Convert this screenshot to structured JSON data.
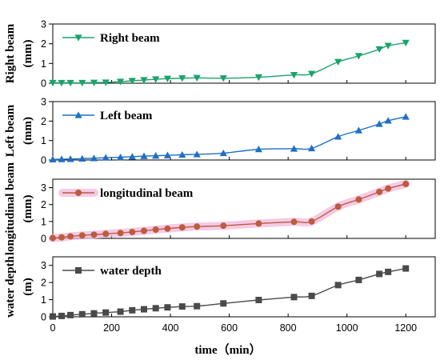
{
  "chart_data": {
    "type": "line",
    "x_axis": {
      "label": "time（min）",
      "range": [
        0,
        1300
      ],
      "ticks": [
        0,
        200,
        400,
        600,
        800,
        1000,
        1200
      ]
    },
    "panels": [
      {
        "ylabel_line1": "Right beam",
        "ylabel_line2": "(mm)",
        "ylim": [
          0,
          3
        ],
        "yticks": [
          0,
          1,
          2,
          3
        ],
        "series": [
          {
            "name": "Right beam",
            "color": "#1aa36b",
            "marker": "triangle-down",
            "band": false,
            "x": [
              0,
              30,
              60,
              100,
              140,
              180,
              230,
              270,
              310,
              350,
              390,
              440,
              490,
              580,
              700,
              820,
              880,
              970,
              1040,
              1110,
              1140,
              1200
            ],
            "y": [
              0.02,
              0.02,
              0.02,
              0.02,
              0.03,
              0.04,
              0.08,
              0.12,
              0.16,
              0.2,
              0.23,
              0.25,
              0.27,
              0.25,
              0.3,
              0.42,
              0.48,
              1.08,
              1.38,
              1.72,
              1.9,
              2.05
            ]
          }
        ]
      },
      {
        "ylabel_line1": "Left beam",
        "ylabel_line2": "(mm)",
        "ylim": [
          0,
          3
        ],
        "yticks": [
          0,
          1,
          2,
          3
        ],
        "series": [
          {
            "name": "Left beam",
            "color": "#1f6fc5",
            "marker": "triangle-up",
            "band": false,
            "x": [
              0,
              30,
              60,
              100,
              140,
              180,
              230,
              270,
              310,
              350,
              390,
              440,
              490,
              580,
              700,
              820,
              880,
              970,
              1040,
              1110,
              1140,
              1200
            ],
            "y": [
              0.03,
              0.04,
              0.05,
              0.07,
              0.09,
              0.12,
              0.14,
              0.17,
              0.2,
              0.22,
              0.24,
              0.27,
              0.29,
              0.35,
              0.55,
              0.58,
              0.6,
              1.2,
              1.52,
              1.85,
              2.02,
              2.22
            ]
          }
        ]
      },
      {
        "ylabel_line1": "longitudinal beam",
        "ylabel_line2": "(mm)",
        "ylim": [
          0,
          3.5
        ],
        "yticks": [
          0,
          1,
          2,
          3
        ],
        "series": [
          {
            "name": "longitudinal beam",
            "color": "#bd5b3e",
            "marker": "circle",
            "band": true,
            "band_color": "#f2b8dc",
            "x": [
              0,
              30,
              60,
              100,
              140,
              180,
              230,
              270,
              310,
              350,
              390,
              440,
              490,
              580,
              700,
              820,
              880,
              970,
              1040,
              1110,
              1140,
              1200
            ],
            "y": [
              0.02,
              0.06,
              0.12,
              0.18,
              0.22,
              0.27,
              0.32,
              0.38,
              0.45,
              0.52,
              0.58,
              0.65,
              0.7,
              0.75,
              0.88,
              0.98,
              1.0,
              1.88,
              2.3,
              2.75,
              2.95,
              3.22
            ]
          }
        ]
      },
      {
        "ylabel_line1": "water depth",
        "ylabel_line2": "(m)",
        "ylim": [
          0,
          3.5
        ],
        "yticks": [
          0,
          1,
          2,
          3
        ],
        "series": [
          {
            "name": "water depth",
            "color": "#4a4a4a",
            "marker": "square",
            "band": false,
            "x": [
              0,
              30,
              60,
              100,
              140,
              180,
              230,
              270,
              310,
              350,
              390,
              440,
              490,
              580,
              700,
              820,
              880,
              970,
              1040,
              1110,
              1140,
              1200
            ],
            "y": [
              0.02,
              0.05,
              0.1,
              0.15,
              0.2,
              0.25,
              0.3,
              0.38,
              0.44,
              0.5,
              0.55,
              0.6,
              0.62,
              0.78,
              0.98,
              1.15,
              1.22,
              1.85,
              2.15,
              2.5,
              2.62,
              2.82
            ]
          }
        ]
      }
    ]
  }
}
